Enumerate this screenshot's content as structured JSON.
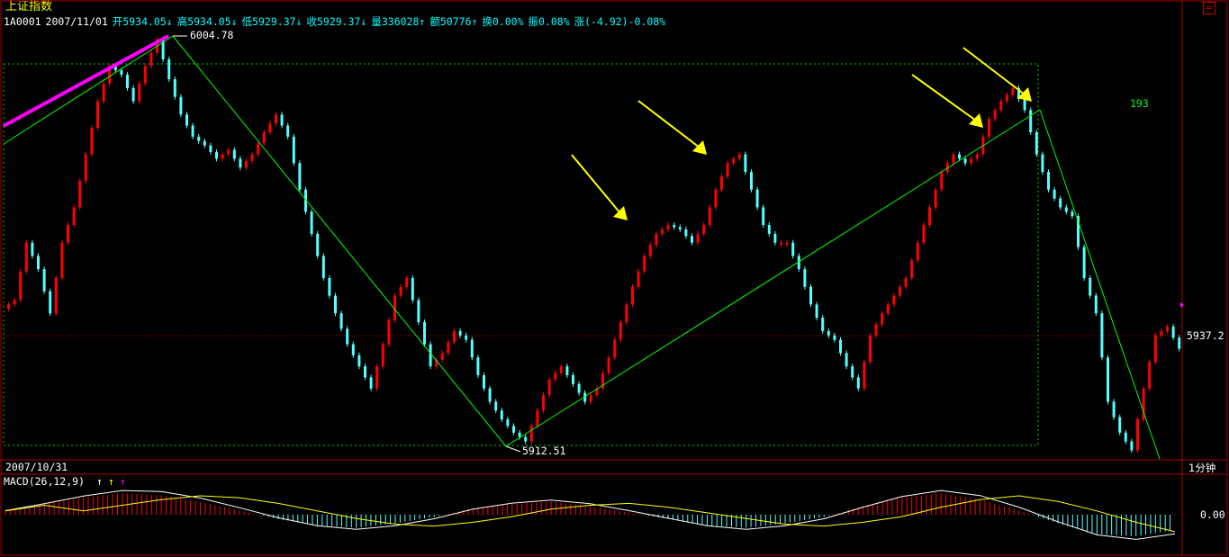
{
  "header": {
    "title": "上证指数",
    "symbol": "1A0001",
    "date": "2007/11/01",
    "open": "开5934.05↓",
    "high": "高5934.05↓",
    "low": "低5929.37↓",
    "close": "收5929.37↓",
    "volume": "量336028↑",
    "amount": "额50776↑",
    "turnover": "换0.00%",
    "amplitude": "振0.08%",
    "change": "涨(-4.92)-0.08%"
  },
  "colors": {
    "up": "#ff0000",
    "down": "#54ffff",
    "trend": "#00ff00",
    "pink_trend": "#ff00ff",
    "arrow": "#ffff00",
    "frame": "#aa0000"
  },
  "annotations": {
    "high_label": "6004.78",
    "low_label": "5912.51",
    "count_label": "193",
    "price_label": "5937.2",
    "date_label": "2007/10/31",
    "timeframe_label": "1分钟",
    "macd_title": "MACD(26,12,9)",
    "macd_zero_label": "0.00",
    "corner_icon": "restore-icon"
  },
  "chart_data": {
    "type": "candlestick",
    "title": "上证指数",
    "ylim": [
      5912.51,
      6004.78
    ],
    "approx_closes": [
      5945,
      5958,
      5952,
      5942,
      5958,
      5966,
      5978,
      5990,
      5998,
      5996,
      5990,
      5998,
      6004,
      5995,
      5987,
      5982,
      5980,
      5977,
      5979,
      5975,
      5978,
      5983,
      5987,
      5982,
      5970,
      5960,
      5950,
      5942,
      5935,
      5930,
      5925,
      5935,
      5946,
      5950,
      5940,
      5930,
      5933,
      5938,
      5936,
      5928,
      5922,
      5918,
      5915,
      5913,
      5920,
      5927,
      5930,
      5926,
      5922,
      5925,
      5932,
      5940,
      5948,
      5955,
      5960,
      5962,
      5961,
      5958,
      5962,
      5970,
      5976,
      5978,
      5970,
      5962,
      5958,
      5958,
      5952,
      5944,
      5938,
      5936,
      5930,
      5925,
      5937,
      5942,
      5946,
      5950,
      5958,
      5966,
      5974,
      5978,
      5976,
      5978,
      5986,
      5990,
      5993,
      5988,
      5978,
      5970,
      5966,
      5964,
      5950,
      5942,
      5922,
      5915,
      5911,
      5925,
      5937,
      5939,
      5934
    ],
    "macd_histogram": [
      0.2,
      0.5,
      0.8,
      1.0,
      0.9,
      0.6,
      0.2,
      -0.2,
      -0.5,
      -0.6,
      -0.4,
      -0.1,
      0.3,
      0.5,
      0.6,
      0.4,
      0.1,
      -0.2,
      -0.5,
      -0.6,
      -0.4,
      -0.1,
      0.4,
      0.8,
      1.0,
      0.7,
      0.2,
      -0.4,
      -0.9,
      -1.0,
      -0.7
    ]
  }
}
